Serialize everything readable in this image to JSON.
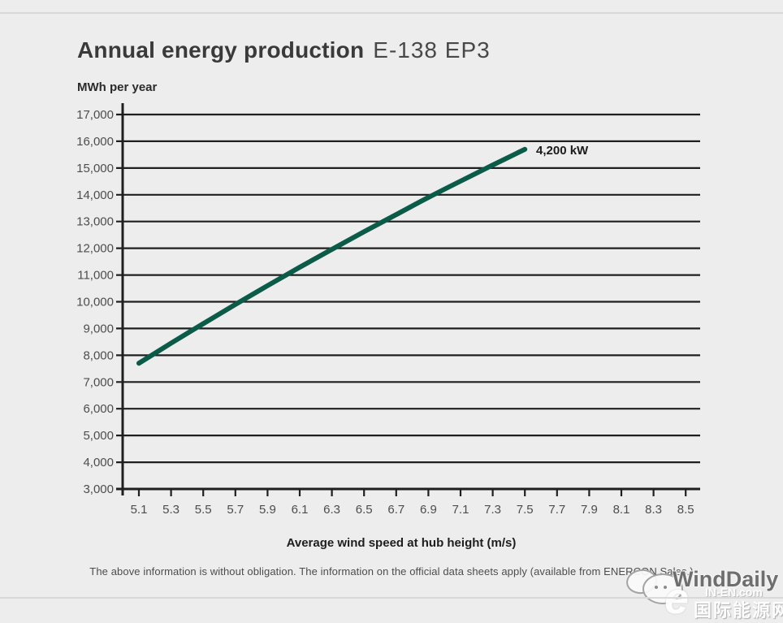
{
  "header": {
    "title_main": "Annual energy production",
    "title_model": "E-138 EP3"
  },
  "chart_data": {
    "type": "line",
    "title": "Annual energy production E-138 EP3",
    "xlabel": "Average wind speed at hub height (m/s)",
    "ylabel": "MWh per year",
    "x": [
      5.1,
      5.3,
      5.5,
      5.7,
      5.9,
      6.1,
      6.3,
      6.5,
      6.7,
      6.9,
      7.1,
      7.3,
      7.5
    ],
    "series": [
      {
        "name": "4,200 kW",
        "values": [
          7700,
          8450,
          9180,
          9900,
          10600,
          11290,
          11960,
          12620,
          13260,
          13900,
          14510,
          15110,
          15700
        ]
      }
    ],
    "x_ticks": [
      5.1,
      5.3,
      5.5,
      5.7,
      5.9,
      6.1,
      6.3,
      6.5,
      6.7,
      6.9,
      7.1,
      7.3,
      7.5,
      7.7,
      7.9,
      8.1,
      8.3,
      8.5
    ],
    "xlim": [
      5.0,
      8.6
    ],
    "ylim": [
      3000,
      17000
    ],
    "y_tick_step": 1000,
    "grid": "horizontal",
    "legend_position": "end-of-line annotation",
    "line_color": "#0b5b49",
    "grid_color": "#1f1f1f",
    "tick_label_color": "#4d4d4d",
    "background_color": "#ededed"
  },
  "footer": {
    "disclaimer": "The above information is without obligation. The information on the official data sheets apply (available from ENERCON Sales.)"
  },
  "watermark": {
    "brand": "WindDaily",
    "logo": "e",
    "site": "IN-EN.com",
    "site_cn": "国际能源网"
  }
}
